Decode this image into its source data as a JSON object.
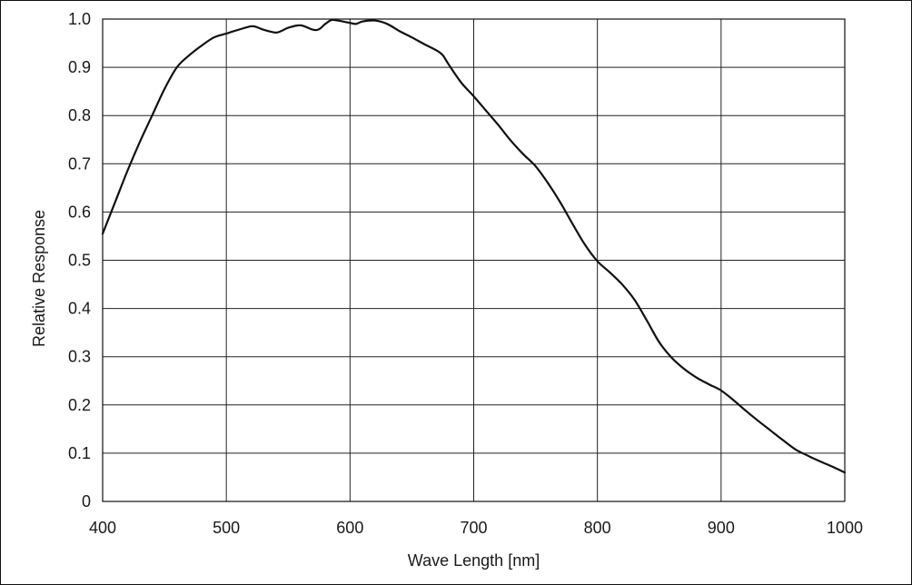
{
  "chart_data": {
    "type": "line",
    "title": "",
    "xlabel": "Wave Length [nm]",
    "ylabel": "Relative Response",
    "xlim": [
      400,
      1000
    ],
    "ylim": [
      0,
      1.0
    ],
    "grid": true,
    "x_ticks": [
      400,
      500,
      600,
      700,
      800,
      900,
      1000
    ],
    "x_tick_labels": [
      "400",
      "500",
      "600",
      "700",
      "800",
      "900",
      "1000"
    ],
    "y_ticks": [
      0,
      0.1,
      0.2,
      0.3,
      0.4,
      0.5,
      0.6,
      0.7,
      0.8,
      0.9,
      1.0
    ],
    "y_tick_labels": [
      "0",
      "0.1",
      "0.2",
      "0.3",
      "0.4",
      "0.5",
      "0.6",
      "0.7",
      "0.8",
      "0.9",
      "1.0"
    ],
    "colors": {
      "line": "#111111",
      "grid": "#222222",
      "background": "#ffffff"
    },
    "series": [
      {
        "x": [
          400,
          410,
          420,
          430,
          440,
          450,
          460,
          470,
          480,
          490,
          500,
          510,
          520,
          525,
          530,
          540,
          545,
          550,
          560,
          570,
          575,
          580,
          585,
          590,
          600,
          605,
          610,
          620,
          630,
          640,
          650,
          660,
          670,
          675,
          680,
          690,
          700,
          710,
          720,
          730,
          740,
          750,
          760,
          770,
          780,
          790,
          800,
          810,
          820,
          830,
          840,
          850,
          860,
          870,
          880,
          890,
          900,
          910,
          920,
          930,
          940,
          950,
          960,
          970,
          980,
          990,
          1000
        ],
        "y": [
          0.555,
          0.62,
          0.685,
          0.745,
          0.8,
          0.855,
          0.9,
          0.925,
          0.945,
          0.962,
          0.97,
          0.978,
          0.985,
          0.983,
          0.978,
          0.972,
          0.976,
          0.982,
          0.987,
          0.978,
          0.979,
          0.99,
          0.998,
          0.997,
          0.992,
          0.99,
          0.995,
          0.997,
          0.99,
          0.975,
          0.962,
          0.948,
          0.935,
          0.925,
          0.905,
          0.868,
          0.84,
          0.81,
          0.78,
          0.748,
          0.72,
          0.695,
          0.66,
          0.62,
          0.575,
          0.532,
          0.498,
          0.475,
          0.45,
          0.418,
          0.375,
          0.33,
          0.298,
          0.275,
          0.257,
          0.243,
          0.23,
          0.21,
          0.188,
          0.167,
          0.147,
          0.127,
          0.108,
          0.095,
          0.083,
          0.072,
          0.06
        ]
      }
    ]
  }
}
